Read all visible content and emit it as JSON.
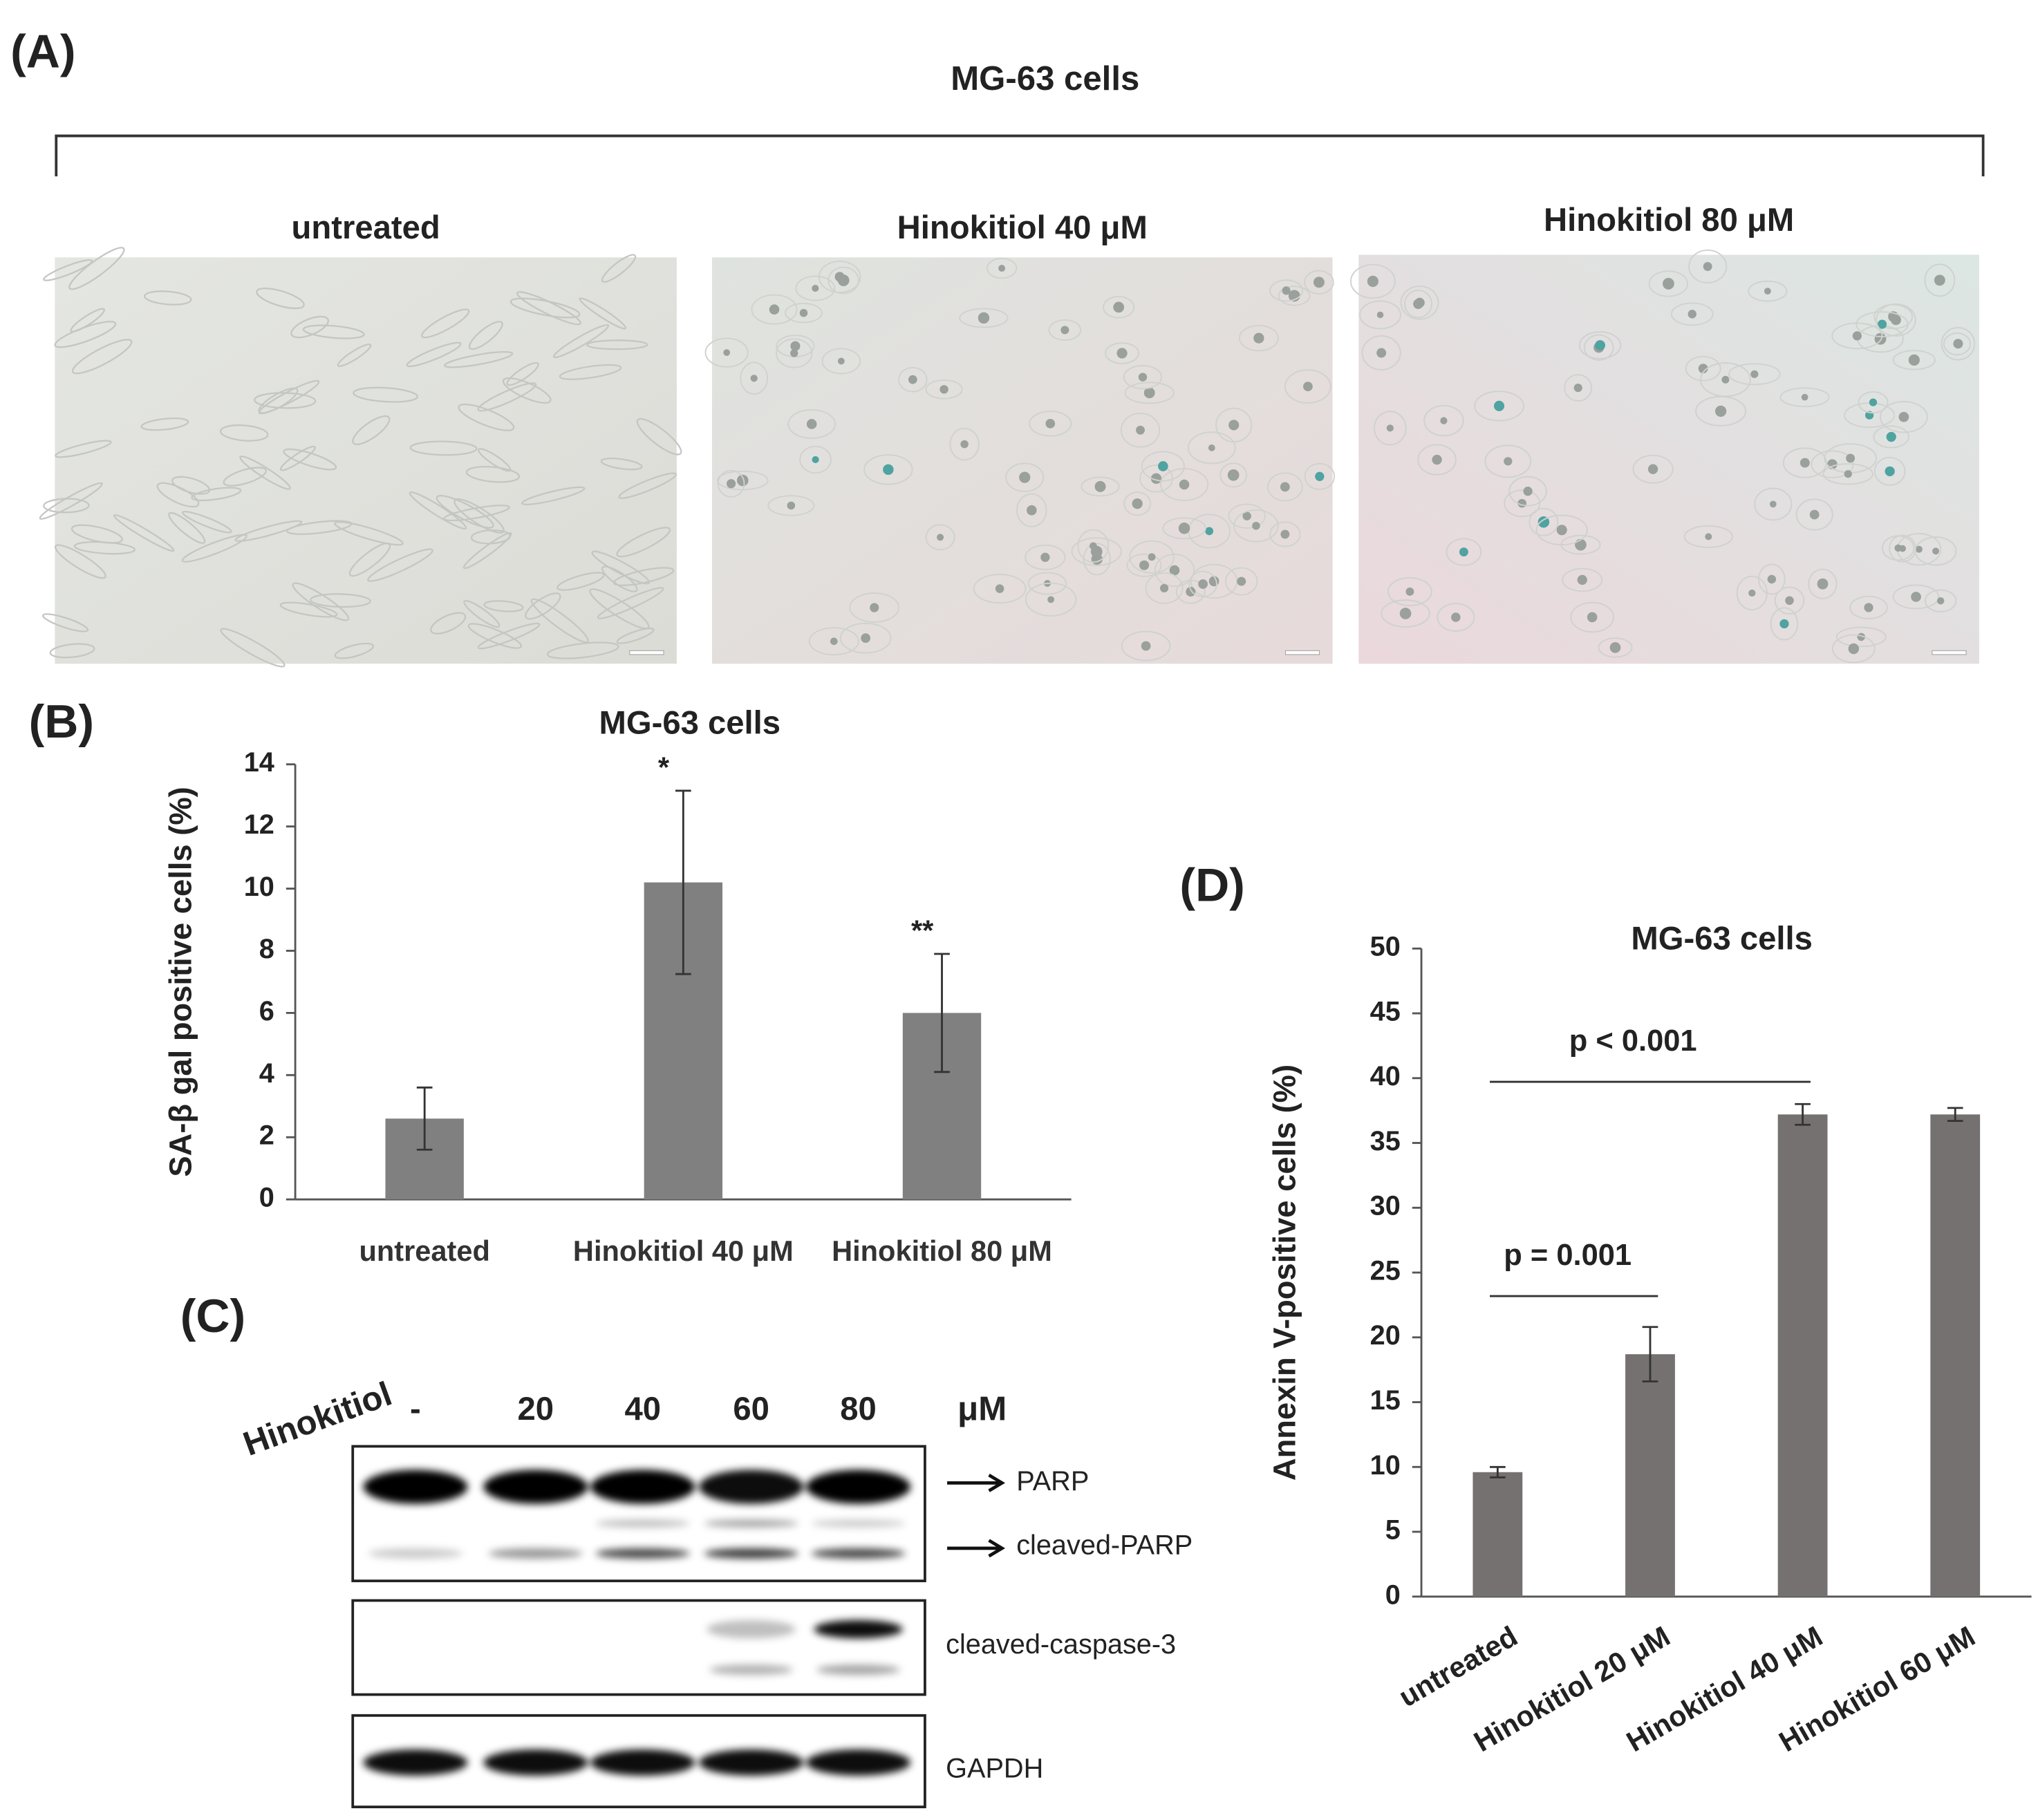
{
  "panel_a": {
    "label": "(A)",
    "title": "MG-63 cells",
    "images": [
      "untreated",
      "Hinokitiol 40 μM",
      "Hinokitiol 80 μM"
    ]
  },
  "chart_data": [
    {
      "type": "bar",
      "panel_label": "(B)",
      "title": "MG-63 cells",
      "y_label": "SA-β gal positive cells (%)",
      "categories": [
        "untreated",
        "Hinokitiol 40 μM",
        "Hinokitiol 80 μM"
      ],
      "values": [
        2.6,
        10.2,
        6.0
      ],
      "errors": [
        1.0,
        2.95,
        1.9
      ],
      "color": "#808080",
      "annotations": [
        "*",
        "**"
      ],
      "ylim": [
        0,
        14
      ],
      "yticks": [
        0,
        2,
        4,
        6,
        8,
        10,
        12,
        14
      ]
    },
    {
      "type": "bar",
      "panel_label": "(D)",
      "title": "MG-63 cells",
      "y_label": "Annexin V-positive cells (%)",
      "categories": [
        "untreated",
        "Hinokitiol 20 μM",
        "Hinokitiol 40 μM",
        "Hinokitiol 60 μM"
      ],
      "values": [
        9.6,
        18.7,
        37.2,
        37.2
      ],
      "errors": [
        0.4,
        2.1,
        0.8,
        0.5
      ],
      "color": "#767171",
      "annotations": [
        "p = 0.001",
        "p < 0.001"
      ],
      "ylim": [
        0,
        50
      ],
      "yticks": [
        0,
        5,
        10,
        15,
        20,
        25,
        30,
        35,
        40,
        45,
        50
      ]
    }
  ],
  "panel_c": {
    "label": "(C)",
    "treatment": "Hinokitiol",
    "lanes": [
      "-",
      "20",
      "40",
      "60",
      "80"
    ],
    "unit": "μM",
    "bands": [
      "PARP",
      "cleaved-PARP",
      "cleaved-caspase-3",
      "GAPDH"
    ]
  }
}
